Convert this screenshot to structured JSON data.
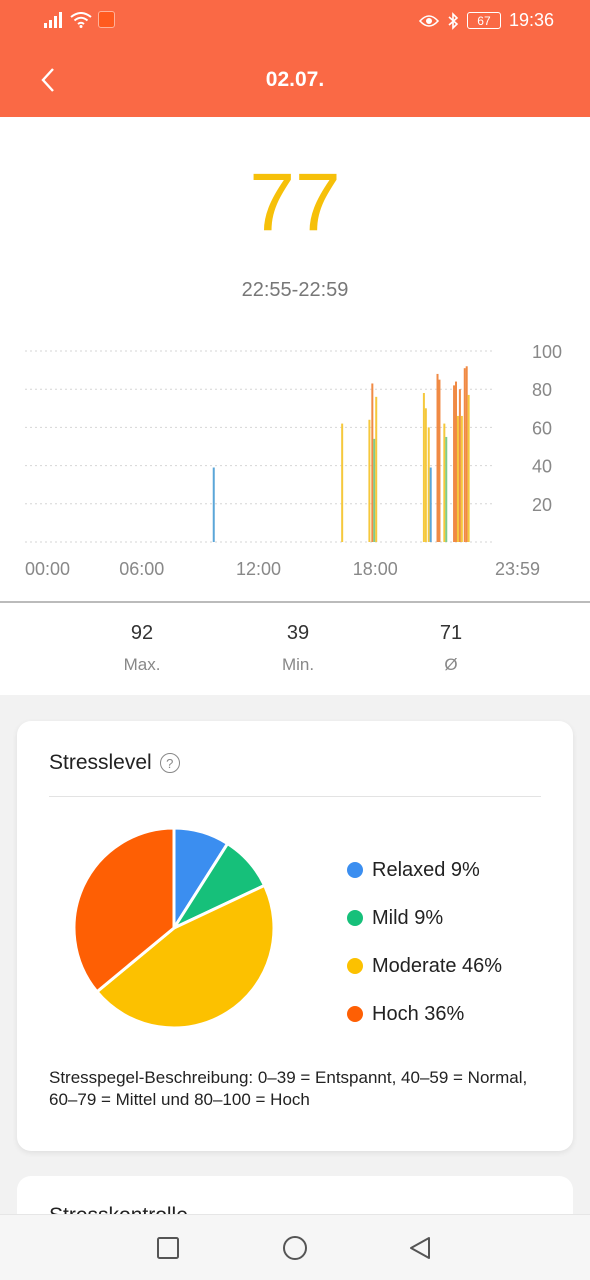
{
  "statusbar": {
    "battery": "67",
    "time": "19:36"
  },
  "header": {
    "title": "02.07."
  },
  "current": {
    "value": "77",
    "time_range": "22:55-22:59"
  },
  "chart_data": {
    "type": "bar",
    "x_ticks": [
      "00:00",
      "06:00",
      "12:00",
      "18:00",
      "23:59"
    ],
    "y_ticks": [
      "100",
      "80",
      "60",
      "40",
      "20"
    ],
    "xlim": [
      0,
      24
    ],
    "ylim": [
      0,
      100
    ],
    "grid": true,
    "bars": [
      {
        "t": 9.7,
        "v": 39,
        "level": "relaxed"
      },
      {
        "t": 16.3,
        "v": 62,
        "level": "moderate"
      },
      {
        "t": 17.7,
        "v": 64,
        "level": "moderate"
      },
      {
        "t": 17.85,
        "v": 83,
        "level": "high"
      },
      {
        "t": 17.95,
        "v": 54,
        "level": "mild"
      },
      {
        "t": 18.05,
        "v": 76,
        "level": "moderate"
      },
      {
        "t": 20.5,
        "v": 78,
        "level": "moderate"
      },
      {
        "t": 20.6,
        "v": 70,
        "level": "moderate"
      },
      {
        "t": 20.75,
        "v": 60,
        "level": "moderate"
      },
      {
        "t": 20.85,
        "v": 39,
        "level": "relaxed"
      },
      {
        "t": 21.2,
        "v": 88,
        "level": "high"
      },
      {
        "t": 21.3,
        "v": 85,
        "level": "high"
      },
      {
        "t": 21.55,
        "v": 62,
        "level": "moderate"
      },
      {
        "t": 21.65,
        "v": 55,
        "level": "mild"
      },
      {
        "t": 22.05,
        "v": 82,
        "level": "high"
      },
      {
        "t": 22.15,
        "v": 84,
        "level": "high"
      },
      {
        "t": 22.25,
        "v": 66,
        "level": "moderate"
      },
      {
        "t": 22.35,
        "v": 80,
        "level": "high"
      },
      {
        "t": 22.45,
        "v": 66,
        "level": "moderate"
      },
      {
        "t": 22.6,
        "v": 91,
        "level": "high"
      },
      {
        "t": 22.7,
        "v": 92,
        "level": "high"
      },
      {
        "t": 22.8,
        "v": 77,
        "level": "moderate"
      }
    ]
  },
  "stats": [
    {
      "value": "92",
      "label": "Max."
    },
    {
      "value": "39",
      "label": "Min."
    },
    {
      "value": "71",
      "label": "Ø"
    }
  ],
  "stress_card": {
    "title": "Stresslevel",
    "pie": [
      {
        "label": "Relaxed 9%",
        "percent": 9,
        "color": "#3b8ef0"
      },
      {
        "label": "Mild 9%",
        "percent": 9,
        "color": "#16c07a"
      },
      {
        "label": "Moderate 46%",
        "percent": 46,
        "color": "#fcc100"
      },
      {
        "label": "Hoch 36%",
        "percent": 36,
        "color": "#fe5f04"
      }
    ],
    "description": "Stresspegel-Beschreibung: 0–39 = Entspannt, 40–59 = Normal, 60–79 = Mittel und 80–100 = Hoch"
  },
  "next_card": {
    "title": "Stresskontrolle"
  },
  "colors": {
    "header": "#fa6945",
    "relaxed": "#5aa6d8",
    "mild": "#7dcc8a",
    "moderate": "#f5c83c",
    "high": "#f08a44"
  }
}
